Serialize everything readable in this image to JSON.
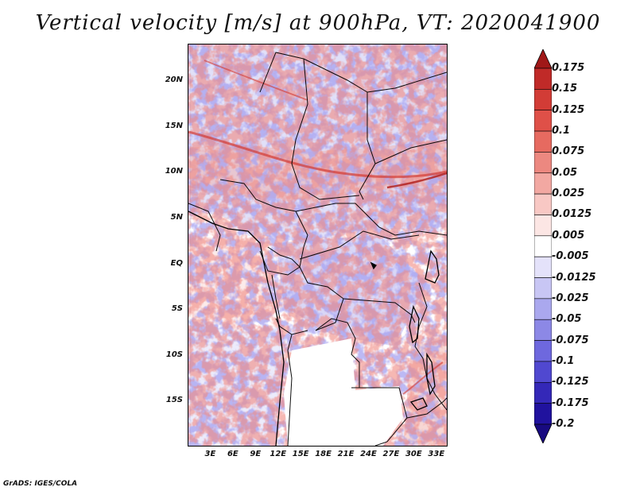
{
  "title": "Vertical velocity [m/s] at 900hPa, VT: 2020041900",
  "credit": "GrADS: IGES/COLA",
  "map": {
    "lat_range": [
      -20,
      24
    ],
    "lon_range": [
      0,
      34.5
    ],
    "y_ticks": [
      {
        "lat": 20,
        "label": "20N"
      },
      {
        "lat": 15,
        "label": "15N"
      },
      {
        "lat": 10,
        "label": "10N"
      },
      {
        "lat": 5,
        "label": "5N"
      },
      {
        "lat": 0,
        "label": "EQ"
      },
      {
        "lat": -5,
        "label": "5S"
      },
      {
        "lat": -10,
        "label": "10S"
      },
      {
        "lat": -15,
        "label": "15S"
      }
    ],
    "x_ticks": [
      {
        "lon": 3,
        "label": "3E"
      },
      {
        "lon": 6,
        "label": "6E"
      },
      {
        "lon": 9,
        "label": "9E"
      },
      {
        "lon": 12,
        "label": "12E"
      },
      {
        "lon": 15,
        "label": "15E"
      },
      {
        "lon": 18,
        "label": "18E"
      },
      {
        "lon": 21,
        "label": "21E"
      },
      {
        "lon": 24,
        "label": "24E"
      },
      {
        "lon": 27,
        "label": "27E"
      },
      {
        "lon": 30,
        "label": "30E"
      },
      {
        "lon": 33,
        "label": "33E"
      }
    ]
  },
  "colorbar": {
    "levels": [
      "0.175",
      "0.15",
      "0.125",
      "0.1",
      "0.075",
      "0.05",
      "0.025",
      "0.0125",
      "0.005",
      "-0.005",
      "-0.0125",
      "-0.025",
      "-0.05",
      "-0.075",
      "-0.1",
      "-0.125",
      "-0.175",
      "-0.2"
    ],
    "colors": [
      "#a01818",
      "#c02a28",
      "#d23c36",
      "#df5048",
      "#e66a60",
      "#ec8880",
      "#f2a8a2",
      "#f8c8c4",
      "#fce6e4",
      "#ffffff",
      "#e4e2fa",
      "#c8c6f4",
      "#aaa8ee",
      "#8c88e6",
      "#6e68de",
      "#5048d0",
      "#3428b8",
      "#20129e",
      "#180a80"
    ]
  }
}
